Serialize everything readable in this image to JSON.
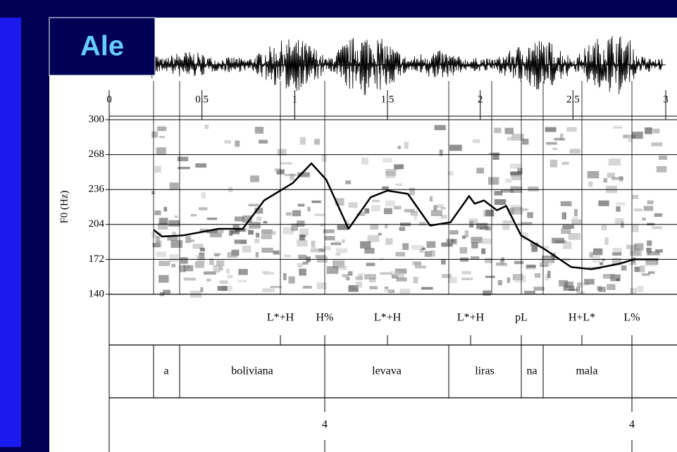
{
  "title": "Ale",
  "chart_data": {
    "type": "line",
    "ylabel": "F0 (Hz)",
    "x": [
      0.24,
      0.285,
      0.4,
      0.59,
      0.72,
      0.835,
      0.99,
      1.09,
      1.17,
      1.29,
      1.41,
      1.5,
      1.61,
      1.73,
      1.84,
      1.94,
      1.97,
      2.02,
      2.09,
      2.14,
      2.22,
      2.35,
      2.49,
      2.6,
      2.75,
      2.83,
      2.96
    ],
    "values": [
      199,
      193,
      194,
      200,
      200,
      226,
      242,
      260,
      245,
      200,
      229,
      235,
      232,
      203,
      206,
      230,
      223,
      226,
      217,
      221,
      194,
      181,
      165,
      163,
      168,
      172,
      172
    ],
    "color": "#000000",
    "xlim": [
      0,
      3
    ],
    "xticks": [
      0,
      0.5,
      1,
      1.5,
      2,
      2.5,
      3
    ],
    "ylim": [
      140,
      300
    ],
    "yticks": [
      140,
      172,
      204,
      236,
      268,
      300
    ],
    "grid": true
  },
  "tiers": {
    "tones": [
      "L*+H",
      "H%",
      "L*+H",
      "L*+H",
      "pL",
      "H+L*",
      "L%"
    ],
    "words": [
      "a",
      "boliviana",
      "levava",
      "liras",
      "na",
      "mala"
    ],
    "breaks": [
      "4",
      "4"
    ]
  }
}
